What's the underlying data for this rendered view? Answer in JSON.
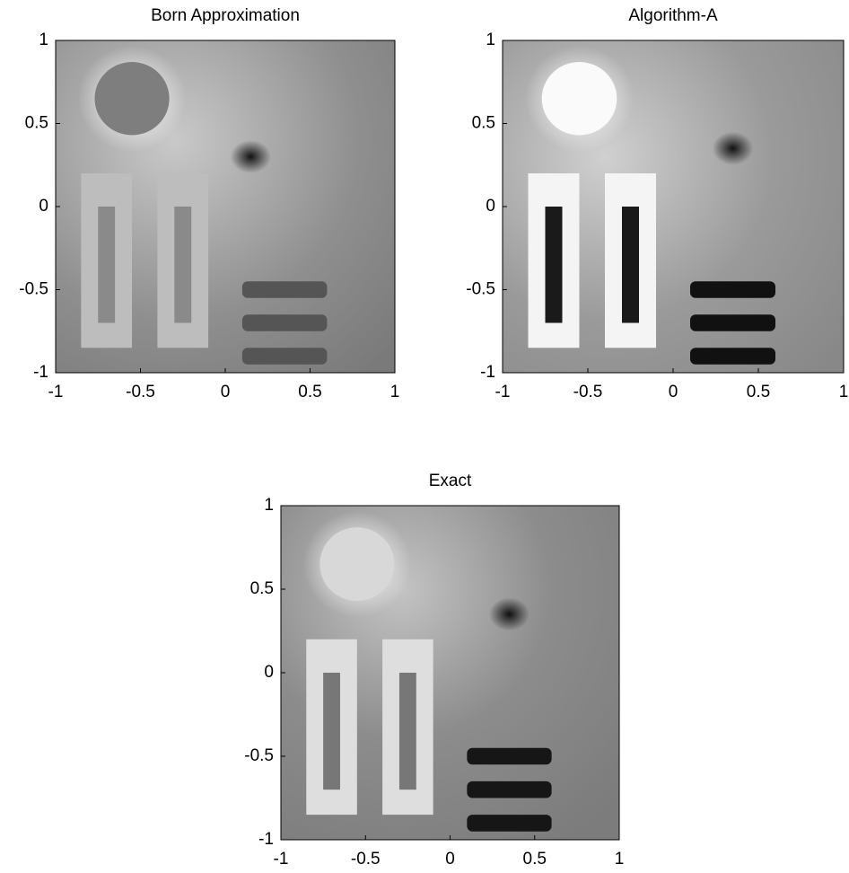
{
  "chart_data": [
    {
      "type": "image",
      "title": "Born Approximation",
      "xlim": [
        -1,
        1
      ],
      "ylim": [
        -1,
        1
      ],
      "xticks": [
        -1,
        -0.5,
        0,
        0.5,
        1
      ],
      "yticks": [
        -1,
        -0.5,
        0,
        0.5,
        1
      ]
    },
    {
      "type": "image",
      "title": "Algorithm-A",
      "xlim": [
        -1,
        1
      ],
      "ylim": [
        -1,
        1
      ],
      "xticks": [
        -1,
        -0.5,
        0,
        0.5,
        1
      ],
      "yticks": [
        -1,
        -0.5,
        0,
        0.5,
        1
      ]
    },
    {
      "type": "image",
      "title": "Exact",
      "xlim": [
        -1,
        1
      ],
      "ylim": [
        -1,
        1
      ],
      "xticks": [
        -1,
        -0.5,
        0,
        0.5,
        1
      ],
      "yticks": [
        -1,
        -0.5,
        0,
        0.5,
        1
      ]
    }
  ]
}
